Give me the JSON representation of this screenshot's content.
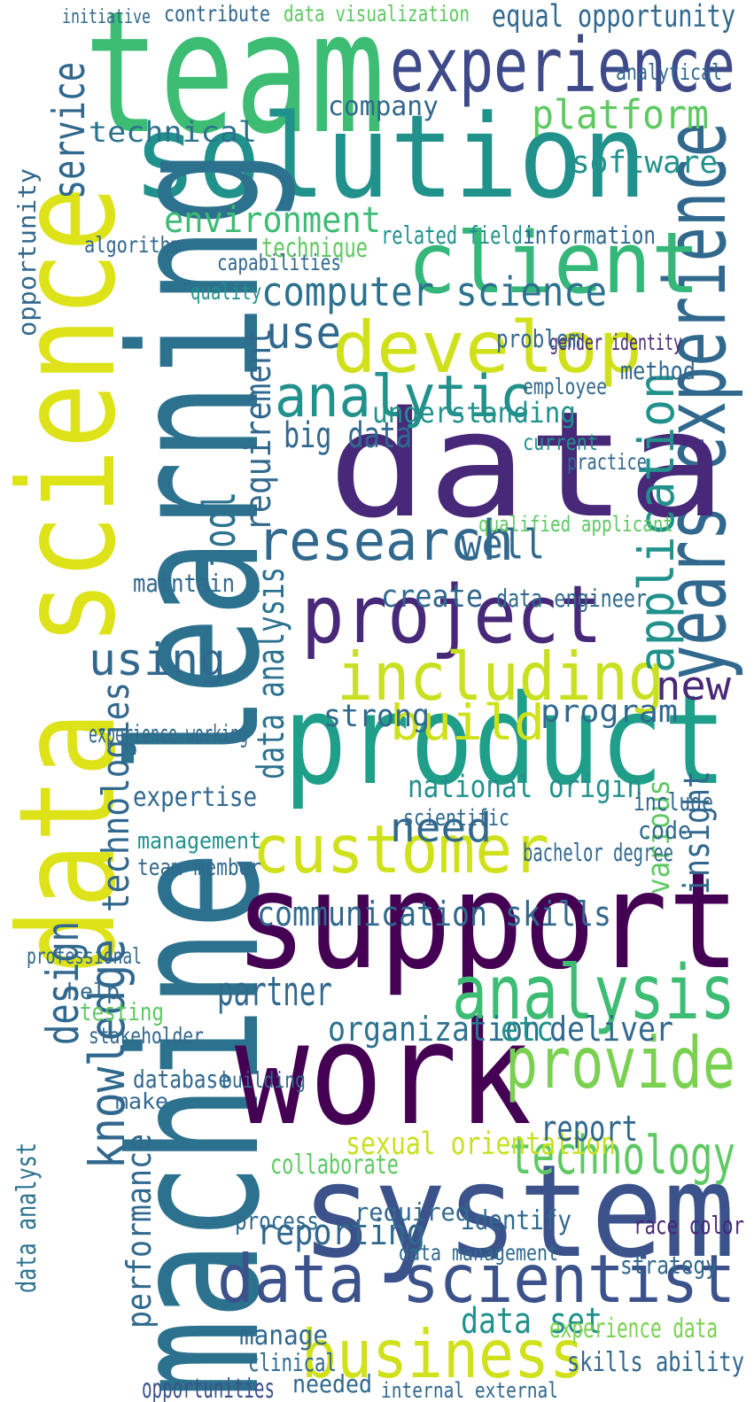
{
  "words": [
    {
      "text": "team",
      "color": "#3dbc74"
    },
    {
      "text": "experience",
      "color": "#3e4a89"
    },
    {
      "text": "solution",
      "color": "#21918c"
    },
    {
      "text": "data science",
      "color": "#dde318"
    },
    {
      "text": "machine learning",
      "color": "#2c728e"
    },
    {
      "text": "years experience",
      "color": "#31688e"
    },
    {
      "text": "data",
      "color": "#482878"
    },
    {
      "text": "support",
      "color": "#440154"
    },
    {
      "text": "work",
      "color": "#440154"
    },
    {
      "text": "system",
      "color": "#3b528b"
    },
    {
      "text": "product",
      "color": "#1f9e89"
    },
    {
      "text": "develop",
      "color": "#d0e11c"
    },
    {
      "text": "client",
      "color": "#35b779"
    },
    {
      "text": "computer science",
      "color": "#2c728e"
    },
    {
      "text": "analytic",
      "color": "#21918c"
    },
    {
      "text": "research",
      "color": "#31688e"
    },
    {
      "text": "project",
      "color": "#482878"
    },
    {
      "text": "including",
      "color": "#c8e020"
    },
    {
      "text": "customer",
      "color": "#d0e11c"
    },
    {
      "text": "communication skills",
      "color": "#31688e"
    },
    {
      "text": "analysis",
      "color": "#3dbc74"
    },
    {
      "text": "provide",
      "color": "#7ad151"
    },
    {
      "text": "technology",
      "color": "#5ec962"
    },
    {
      "text": "data scientist",
      "color": "#3b528b"
    },
    {
      "text": "business",
      "color": "#d0e11c"
    },
    {
      "text": "application",
      "color": "#21918c"
    },
    {
      "text": "knowledge",
      "color": "#31688e"
    },
    {
      "text": "design",
      "color": "#31688e"
    },
    {
      "text": "data analyst",
      "color": "#2c728e"
    },
    {
      "text": "performance",
      "color": "#31688e"
    },
    {
      "text": "opportunities",
      "color": "#3b528b"
    },
    {
      "text": "technical",
      "color": "#2c728e"
    },
    {
      "text": "service",
      "color": "#31688e"
    },
    {
      "text": "platform",
      "color": "#5ec962"
    },
    {
      "text": "equal opportunity",
      "color": "#31688e"
    },
    {
      "text": "software",
      "color": "#21918c"
    },
    {
      "text": "environment",
      "color": "#3dbc74"
    },
    {
      "text": "technique",
      "color": "#5ec962"
    },
    {
      "text": "requirement",
      "color": "#31688e"
    },
    {
      "text": "data analysis",
      "color": "#2c728e"
    },
    {
      "text": "big data",
      "color": "#31688e"
    },
    {
      "text": "understanding",
      "color": "#21918c"
    },
    {
      "text": "well",
      "color": "#31688e"
    },
    {
      "text": "use",
      "color": "#31688e"
    },
    {
      "text": "using",
      "color": "#31688e"
    },
    {
      "text": "new",
      "color": "#482878"
    },
    {
      "text": "build",
      "color": "#d0e11c"
    },
    {
      "text": "strong",
      "color": "#31688e"
    },
    {
      "text": "program",
      "color": "#31688e"
    },
    {
      "text": "need",
      "color": "#31688e"
    },
    {
      "text": "national origin",
      "color": "#21918c"
    },
    {
      "text": "partner",
      "color": "#31688e"
    },
    {
      "text": "organization",
      "color": "#2c728e"
    },
    {
      "text": "etc",
      "color": "#21918c"
    },
    {
      "text": "deliver",
      "color": "#31688e"
    },
    {
      "text": "sexual orientation",
      "color": "#c8e020"
    },
    {
      "text": "reporting",
      "color": "#31688e"
    },
    {
      "text": "technologies",
      "color": "#31688e"
    },
    {
      "text": "tool",
      "color": "#2c728e"
    },
    {
      "text": "report",
      "color": "#31688e"
    },
    {
      "text": "data set",
      "color": "#21918c"
    },
    {
      "text": "experience data",
      "color": "#7ad151"
    },
    {
      "text": "skills ability",
      "color": "#31688e"
    },
    {
      "text": "internal external",
      "color": "#31688e"
    },
    {
      "text": "experience working",
      "color": "#31688e"
    },
    {
      "text": "expertise",
      "color": "#31688e"
    },
    {
      "text": "management",
      "color": "#21918c"
    },
    {
      "text": "team member",
      "color": "#31688e"
    },
    {
      "text": "maintain",
      "color": "#31688e"
    },
    {
      "text": "create",
      "color": "#31688e"
    },
    {
      "text": "data engineer",
      "color": "#31688e"
    },
    {
      "text": "qualified applicant",
      "color": "#5ec962"
    },
    {
      "text": "company",
      "color": "#31688e"
    },
    {
      "text": "analytical",
      "color": "#31688e"
    },
    {
      "text": "data visualization",
      "color": "#5ec962"
    },
    {
      "text": "contribute",
      "color": "#31688e"
    },
    {
      "text": "initiative",
      "color": "#31688e"
    },
    {
      "text": "related field",
      "color": "#21918c"
    },
    {
      "text": "information",
      "color": "#31688e"
    },
    {
      "text": "capabilities",
      "color": "#31688e"
    },
    {
      "text": "quality",
      "color": "#21918c"
    },
    {
      "text": "gender identity",
      "color": "#482878"
    },
    {
      "text": "problem",
      "color": "#31688e"
    },
    {
      "text": "method",
      "color": "#31688e"
    },
    {
      "text": "employee",
      "color": "#31688e"
    },
    {
      "text": "practice",
      "color": "#31688e"
    },
    {
      "text": "current",
      "color": "#21918c"
    },
    {
      "text": "opportunity",
      "color": "#31688e"
    },
    {
      "text": "algorithm",
      "color": "#31688e"
    },
    {
      "text": "collaborate",
      "color": "#5ec962"
    },
    {
      "text": "required",
      "color": "#31688e"
    },
    {
      "text": "identify",
      "color": "#31688e"
    },
    {
      "text": "strategy",
      "color": "#31688e"
    },
    {
      "text": "race color",
      "color": "#482878"
    },
    {
      "text": "data management",
      "color": "#31688e"
    },
    {
      "text": "manage",
      "color": "#31688e"
    },
    {
      "text": "clinical",
      "color": "#31688e"
    },
    {
      "text": "needed",
      "color": "#31688e"
    },
    {
      "text": "process",
      "color": "#31688e"
    },
    {
      "text": "testing",
      "color": "#5ec962"
    },
    {
      "text": "stakeholder",
      "color": "#31688e"
    },
    {
      "text": "database",
      "color": "#31688e"
    },
    {
      "text": "building",
      "color": "#31688e"
    },
    {
      "text": "make",
      "color": "#31688e"
    },
    {
      "text": "help",
      "color": "#31688e"
    },
    {
      "text": "professional",
      "color": "#31688e"
    },
    {
      "text": "insight",
      "color": "#31688e"
    },
    {
      "text": "various",
      "color": "#5ec962"
    },
    {
      "text": "bachelor degree",
      "color": "#31688e"
    },
    {
      "text": "code",
      "color": "#31688e"
    },
    {
      "text": "include",
      "color": "#31688e"
    },
    {
      "text": "scientific",
      "color": "#31688e"
    }
  ]
}
